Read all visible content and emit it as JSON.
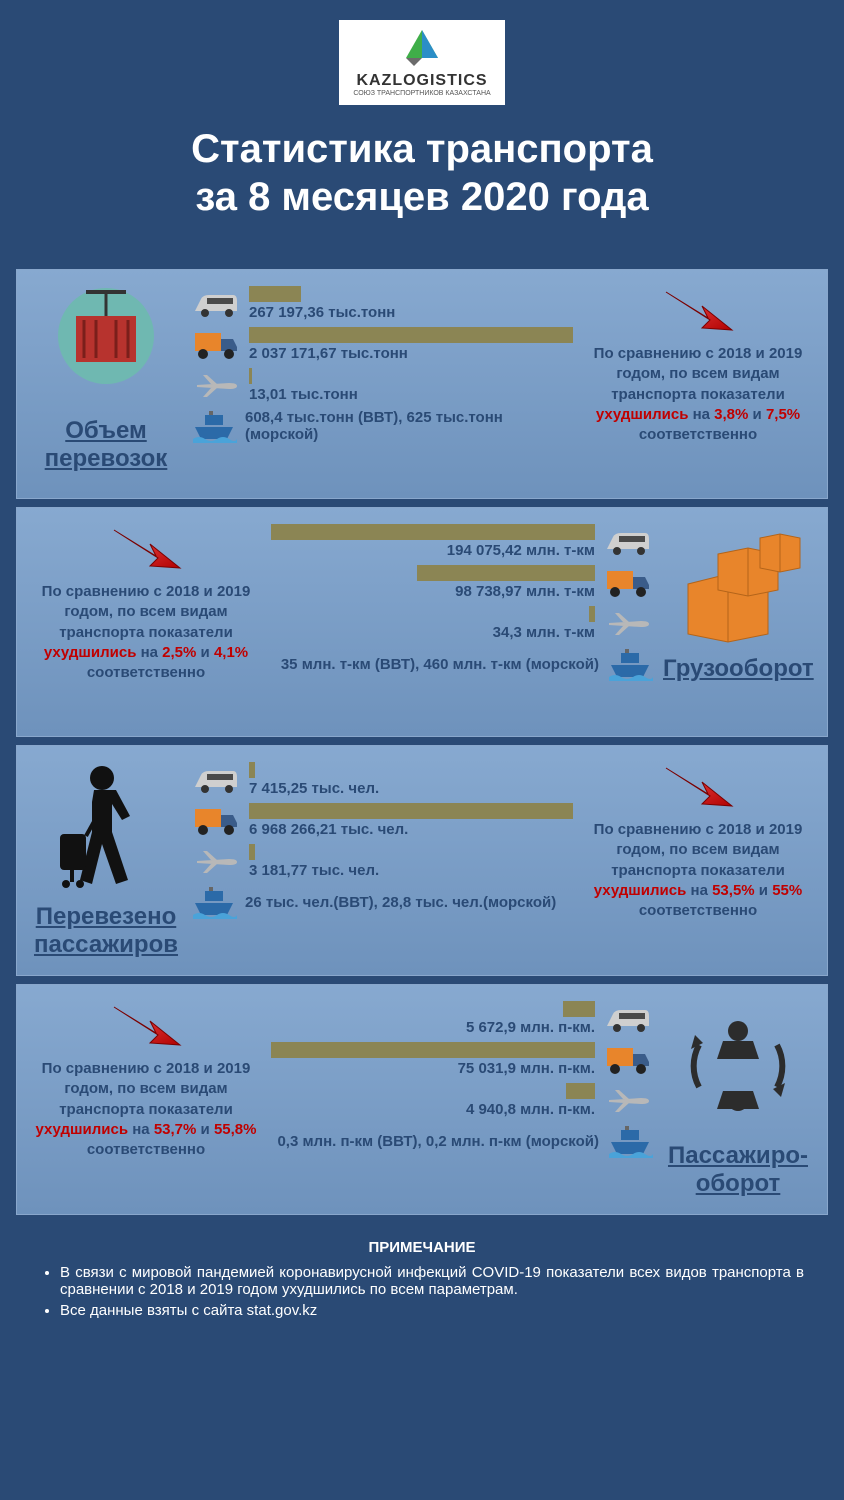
{
  "colors": {
    "page_bg": "#2a4a75",
    "section_bg_top": "#87a9d0",
    "section_bg_bottom": "#6e92bc",
    "section_border": "#89a7cc",
    "bar": "#8b8554",
    "text_dark": "#2a4a75",
    "text_white": "#ffffff",
    "accent_red": "#c00000",
    "arrow_fill": "#ff0000",
    "box_orange": "#e8852b",
    "truck_orange": "#e8852b",
    "truck_blue": "#3a5c8a",
    "train_grey": "#cfcfcf",
    "plane_grey": "#b8b8b8",
    "ship_blue": "#2b6aa8",
    "container_red": "#b7332e"
  },
  "logo": {
    "brand": "KAZLOGISTICS",
    "subtitle": "СОЮЗ ТРАНСПОРТНИКОВ КАЗАХСТАНА"
  },
  "title_line1": "Статистика транспорта",
  "title_line2": "за 8 месяцев 2020 года",
  "sections": [
    {
      "key": "volume",
      "title": "Объем перевозок",
      "layout": "left",
      "metrics": [
        {
          "icon": "train",
          "value": "267 197,36 тыс.тонн",
          "bar_pct": 16
        },
        {
          "icon": "truck",
          "value": "2 037 171,67 тыс.тонн",
          "bar_pct": 100
        },
        {
          "icon": "plane",
          "value": "13,01 тыс.тонн",
          "bar_pct": 1
        }
      ],
      "ship_line": "608,4 тыс.тонн (ВВТ), 625 тыс.тонн (морской)",
      "note_pre": "По сравнению с 2018 и 2019 годом, по всем видам транспорта показатели ",
      "note_red1": "ухудшились",
      "note_mid1": " на ",
      "pct1": "3,8%",
      "note_and": " и ",
      "pct2": "7,5%",
      "note_post": " соответственно"
    },
    {
      "key": "freight",
      "title": "Грузооборот",
      "layout": "right",
      "metrics": [
        {
          "icon": "train",
          "value": "194 075,42 млн. т-км",
          "bar_pct": 100
        },
        {
          "icon": "truck",
          "value": "98 738,97 млн. т-км",
          "bar_pct": 55
        },
        {
          "icon": "plane",
          "value": "34,3 млн. т-км",
          "bar_pct": 2
        }
      ],
      "ship_line": "35 млн. т-км (ВВТ), 460 млн. т-км (морской)",
      "note_pre": "По сравнению с 2018 и 2019 годом, по всем видам транспорта показатели ",
      "note_red1": "ухудшились",
      "note_mid1": " на ",
      "pct1": "2,5%",
      "note_and": " и ",
      "pct2": "4,1%",
      "note_post": " соответственно"
    },
    {
      "key": "pax",
      "title": "Перевезено пассажиров",
      "layout": "left",
      "metrics": [
        {
          "icon": "train",
          "value": "7 415,25 тыс. чел.",
          "bar_pct": 2
        },
        {
          "icon": "truck",
          "value": "6 968 266,21 тыс. чел.",
          "bar_pct": 100
        },
        {
          "icon": "plane",
          "value": "3 181,77 тыс. чел.",
          "bar_pct": 2
        }
      ],
      "ship_line": "26 тыс. чел.(ВВТ), 28,8 тыс. чел.(морской)",
      "note_pre": "По сравнению с 2018 и 2019 годом, по всем видам транспорта показатели ",
      "note_red1": "ухудшились",
      "note_mid1": " на ",
      "pct1": "53,5%",
      "note_and": " и ",
      "pct2": "55%",
      "note_post": " соответственно"
    },
    {
      "key": "pax_turnover",
      "title": "Пассажиро- оборот",
      "layout": "right",
      "metrics": [
        {
          "icon": "train",
          "value": "5 672,9 млн. п-км.",
          "bar_pct": 10
        },
        {
          "icon": "truck",
          "value": "75 031,9 млн. п-км.",
          "bar_pct": 100
        },
        {
          "icon": "plane",
          "value": "4 940,8 млн. п-км.",
          "bar_pct": 9
        }
      ],
      "ship_line": "0,3 млн. п-км (ВВТ), 0,2 млн. п-км (морской)",
      "note_pre": "По сравнению с 2018 и 2019 годом, по всем видам транспорта показатели ",
      "note_red1": "ухудшились",
      "note_mid1": " на ",
      "pct1": "53,7%",
      "note_and": " и ",
      "pct2": "55,8%",
      "note_post": " соответственно"
    }
  ],
  "footer": {
    "title": "ПРИМЕЧАНИЕ",
    "bullets": [
      "В связи с мировой пандемией коронавирусной инфекций COVID-19 показатели всех видов транспорта в сравнении с 2018 и 2019 годом ухудшились по всем параметрам.",
      "Все данные взяты с сайта stat.gov.kz"
    ]
  }
}
